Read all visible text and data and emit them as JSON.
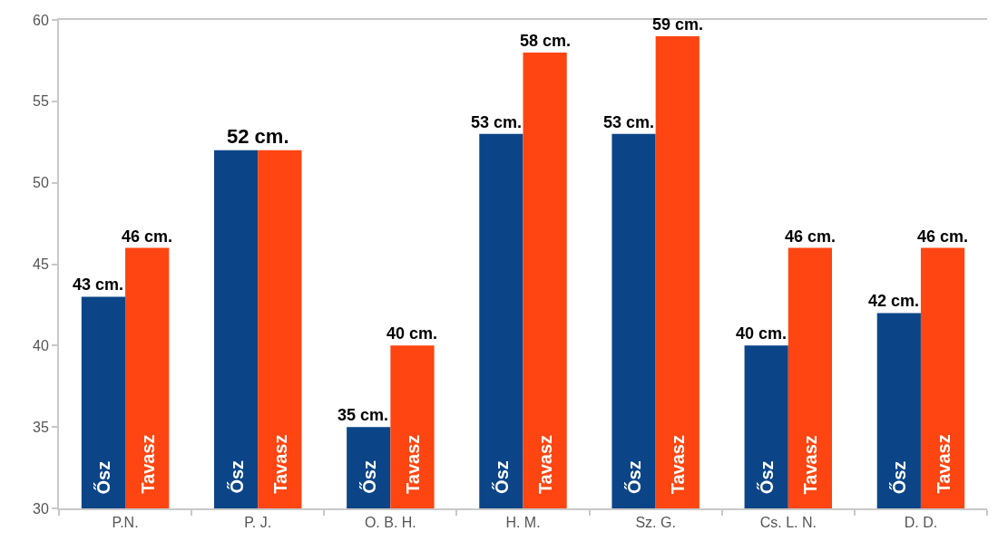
{
  "chart_data": {
    "type": "bar",
    "categories": [
      "P.N.",
      "P. J.",
      "O. B. H.",
      "H. M.",
      "Sz. G.",
      "Cs. L. N.",
      "D. D."
    ],
    "series": [
      {
        "name": "Ősz",
        "color": "#0b4588",
        "values": [
          43,
          52,
          35,
          53,
          53,
          40,
          42
        ],
        "value_labels": [
          "43 cm.",
          null,
          "35 cm.",
          "53 cm.",
          "53 cm.",
          "40 cm.",
          "42 cm."
        ]
      },
      {
        "name": "Tavasz",
        "color": "#ff4511",
        "values": [
          46,
          52,
          40,
          58,
          59,
          46,
          46
        ],
        "value_labels": [
          "46 cm.",
          "52 cm.",
          "40 cm.",
          "58 cm.",
          "59 cm.",
          "46 cm.",
          "46 cm."
        ]
      }
    ],
    "ylim": [
      30,
      60
    ],
    "yticks": [
      30,
      35,
      40,
      45,
      50,
      55,
      60
    ],
    "grid": false,
    "legend": false
  }
}
